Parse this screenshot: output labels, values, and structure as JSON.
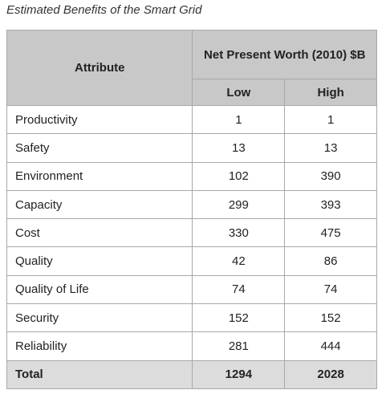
{
  "title": "Estimated Benefits of the Smart Grid",
  "table": {
    "headers": {
      "attribute": "Attribute",
      "group": "Net Present Worth (2010) $B",
      "low": "Low",
      "high": "High"
    },
    "rows": [
      [
        "Productivity",
        1,
        1
      ],
      [
        "Safety",
        13,
        13
      ],
      [
        "Environment",
        102,
        390
      ],
      [
        "Capacity",
        299,
        393
      ],
      [
        "Cost",
        330,
        475
      ],
      [
        "Quality",
        42,
        86
      ],
      [
        "Quality of Life",
        74,
        74
      ],
      [
        "Security",
        152,
        152
      ],
      [
        "Reliability",
        281,
        444
      ]
    ],
    "total": [
      "Total",
      1294,
      2028
    ]
  }
}
